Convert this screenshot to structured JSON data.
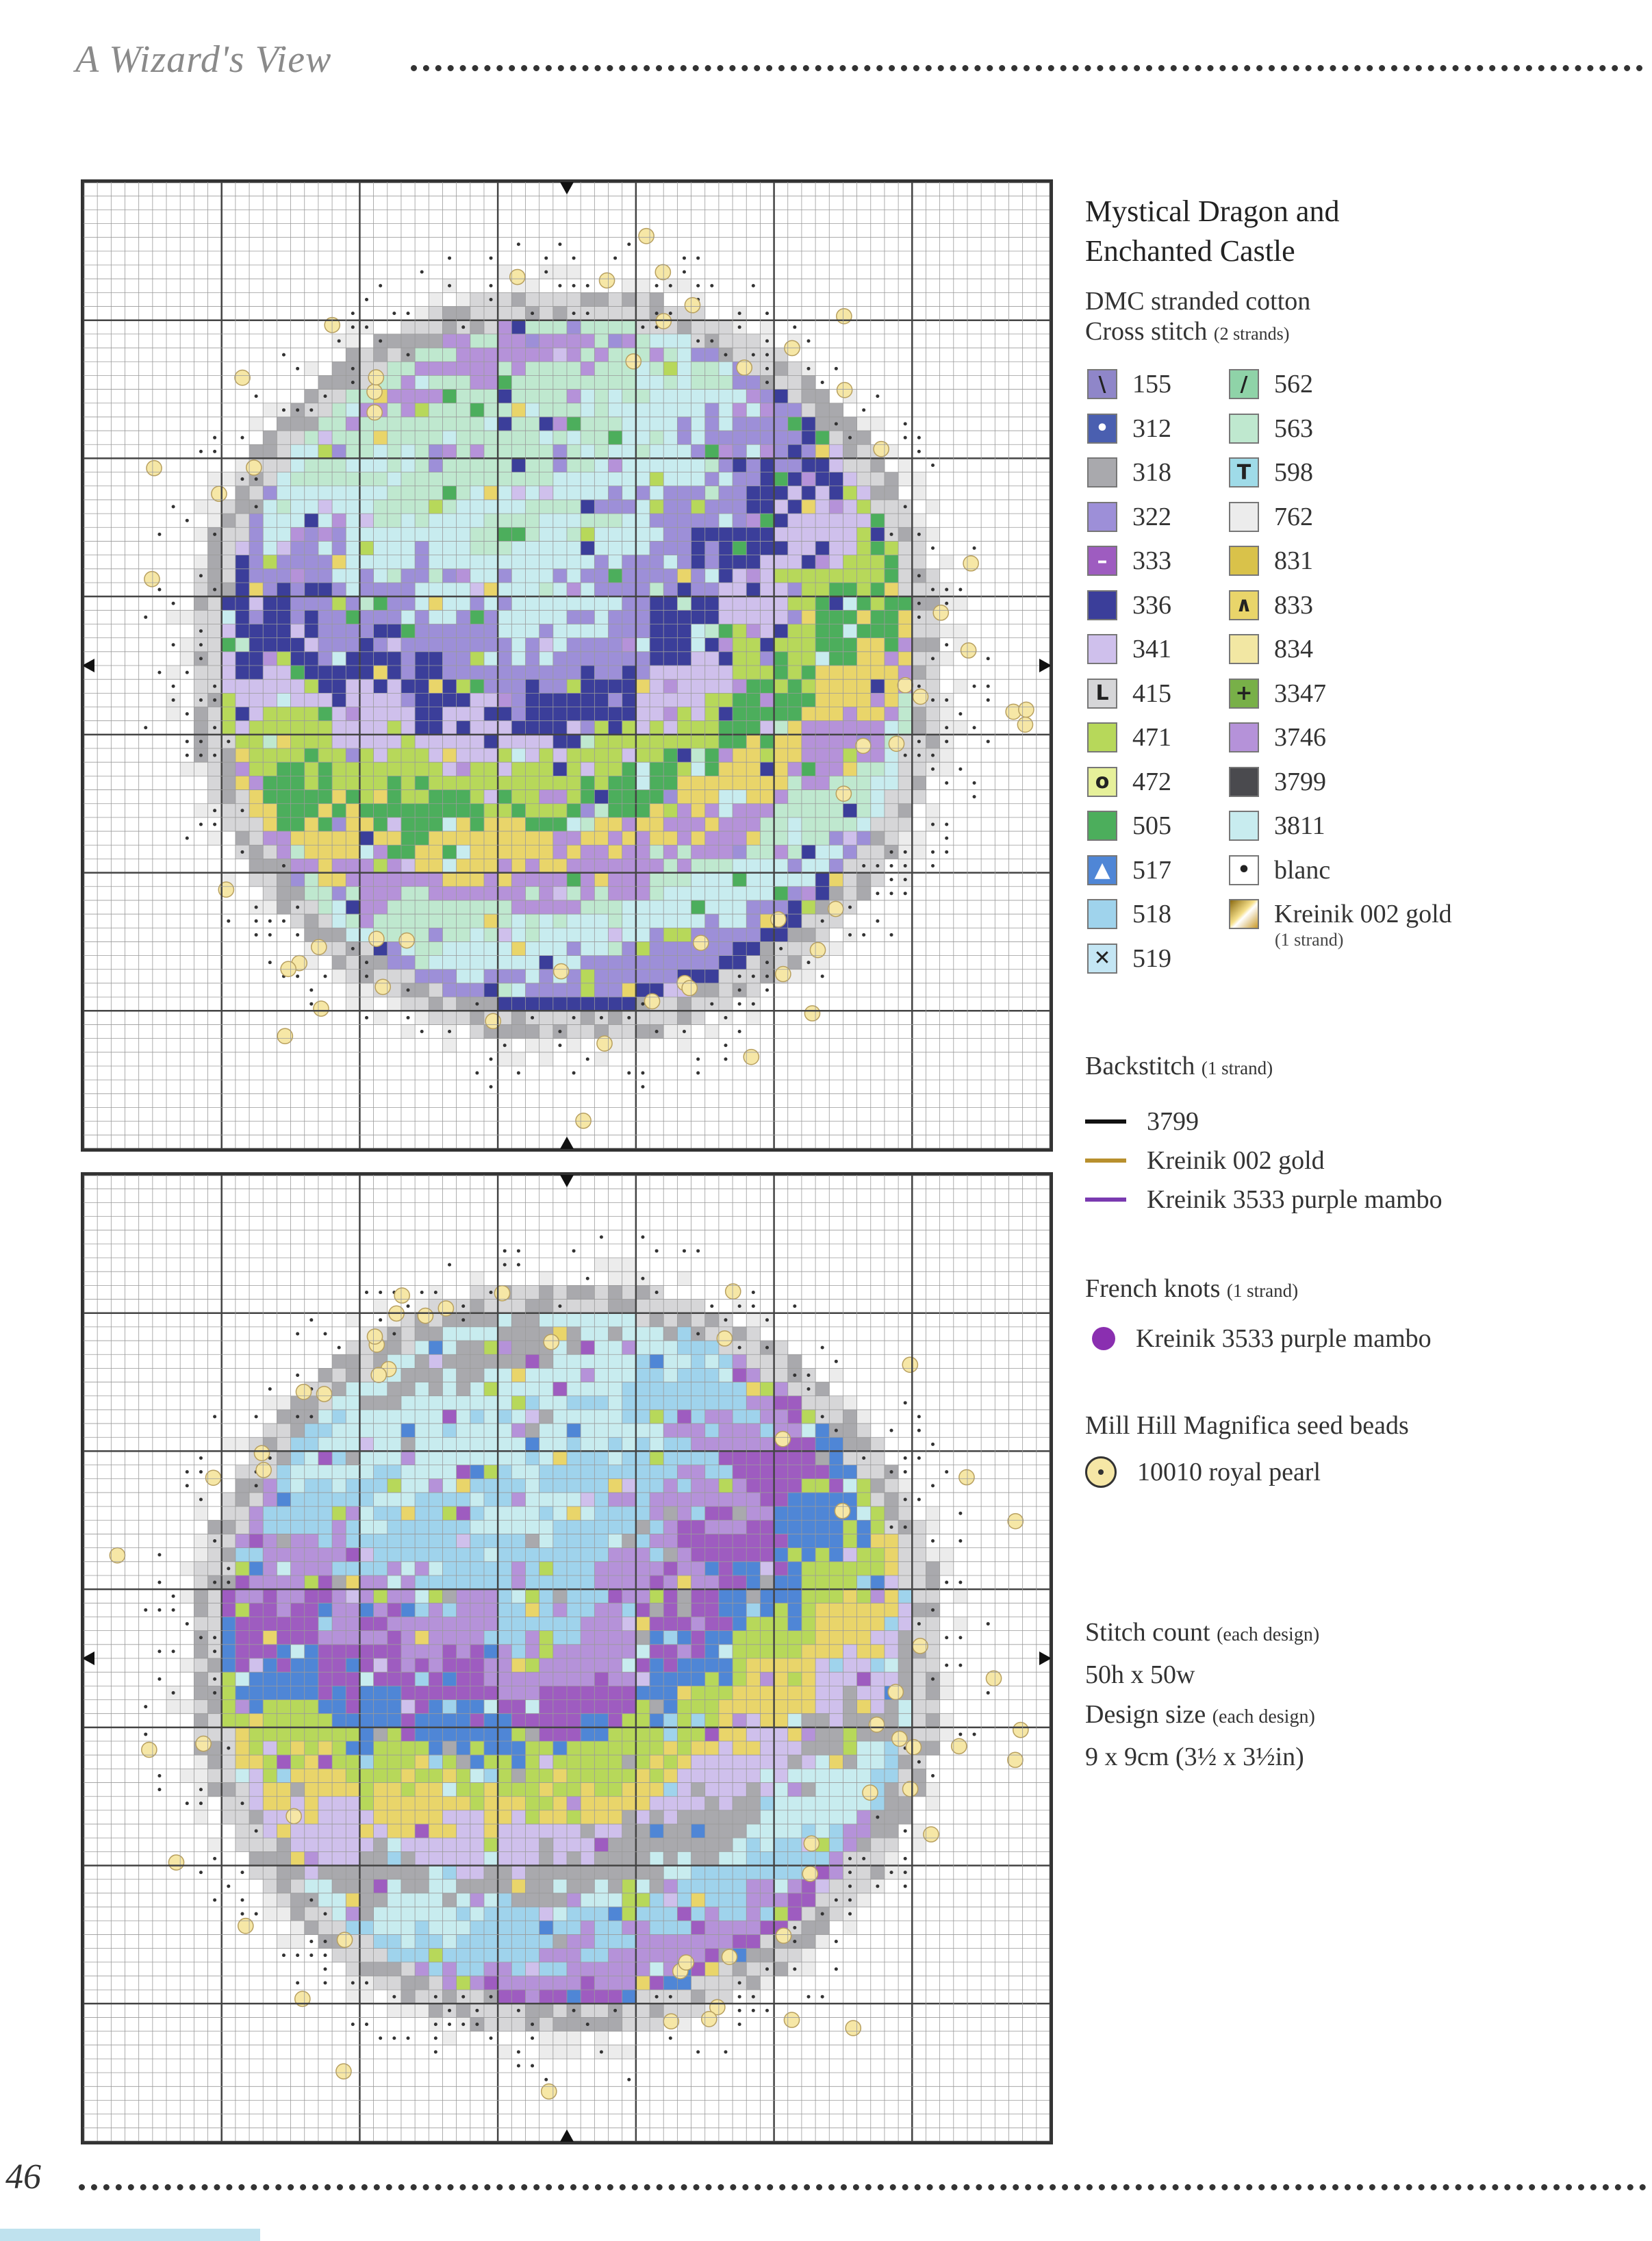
{
  "header": {
    "title": "A Wizard's View"
  },
  "page": {
    "number": "46"
  },
  "legend": {
    "title_line1": "Mystical Dragon and",
    "title_line2": "Enchanted Castle",
    "thread": "DMC stranded cotton",
    "cross_stitch": "Cross stitch",
    "cross_stitch_note": "(2 strands)",
    "left_column": [
      {
        "code": "155",
        "color": "#8f86c9",
        "symbol": "\\",
        "symbol_color": "#222"
      },
      {
        "code": "312",
        "color": "#4a5fb0",
        "symbol": "•",
        "symbol_color": "#fff"
      },
      {
        "code": "318",
        "color": "#a9a9ad",
        "symbol": "",
        "symbol_color": "#222"
      },
      {
        "code": "322",
        "color": "#9d8fd8",
        "symbol": "",
        "symbol_color": "#222"
      },
      {
        "code": "333",
        "color": "#9e5cc0",
        "symbol": "–",
        "symbol_color": "#fff"
      },
      {
        "code": "336",
        "color": "#3b3e9a",
        "symbol": "",
        "symbol_color": "#222"
      },
      {
        "code": "341",
        "color": "#cfc0ec",
        "symbol": "",
        "symbol_color": "#222"
      },
      {
        "code": "415",
        "color": "#d6d6d8",
        "symbol": "L",
        "symbol_color": "#222"
      },
      {
        "code": "471",
        "color": "#b7d85a",
        "symbol": "",
        "symbol_color": "#222"
      },
      {
        "code": "472",
        "color": "#e6f09a",
        "symbol": "o",
        "symbol_color": "#222"
      },
      {
        "code": "505",
        "color": "#4cae5c",
        "symbol": "",
        "symbol_color": "#222"
      },
      {
        "code": "517",
        "color": "#4f86d6",
        "symbol": "▲",
        "symbol_color": "#fff"
      },
      {
        "code": "518",
        "color": "#9fd3ec",
        "symbol": "",
        "symbol_color": "#222"
      },
      {
        "code": "519",
        "color": "#c4e6f4",
        "symbol": "✕",
        "symbol_color": "#222"
      }
    ],
    "right_column": [
      {
        "code": "562",
        "color": "#8fd3a8",
        "symbol": "/",
        "symbol_color": "#222"
      },
      {
        "code": "563",
        "color": "#bfe8cf",
        "symbol": "",
        "symbol_color": "#222"
      },
      {
        "code": "598",
        "color": "#9fdbe8",
        "symbol": "T",
        "symbol_color": "#222"
      },
      {
        "code": "762",
        "color": "#ececec",
        "symbol": "",
        "symbol_color": "#222"
      },
      {
        "code": "831",
        "color": "#d9c24a",
        "symbol": "",
        "symbol_color": "#222"
      },
      {
        "code": "833",
        "color": "#e9d56a",
        "symbol": "∧",
        "symbol_color": "#222"
      },
      {
        "code": "834",
        "color": "#f2e7a3",
        "symbol": "",
        "symbol_color": "#222"
      },
      {
        "code": "3347",
        "color": "#78b048",
        "symbol": "+",
        "symbol_color": "#222"
      },
      {
        "code": "3746",
        "color": "#b592d9",
        "symbol": "",
        "symbol_color": "#222"
      },
      {
        "code": "3799",
        "color": "#4a4a4e",
        "symbol": "",
        "symbol_color": "#222"
      },
      {
        "code": "3811",
        "color": "#c8ecef",
        "symbol": "",
        "symbol_color": "#222"
      },
      {
        "code": "blanc",
        "color": "#ffffff",
        "symbol": "•",
        "symbol_color": "#222"
      },
      {
        "code": "Kreinik 002 gold",
        "color": "#d8b23a",
        "symbol": "",
        "symbol_color": "#222"
      }
    ],
    "gold_note": "(1 strand)"
  },
  "backstitch": {
    "heading": "Backstitch",
    "note": "(1 strand)",
    "items": [
      {
        "label": "3799",
        "color": "#111111"
      },
      {
        "label": "Kreinik 002 gold",
        "color": "#b8902e"
      },
      {
        "label": "Kreinik 3533 purple mambo",
        "color": "#7a3ab0"
      }
    ]
  },
  "french_knots": {
    "heading": "French knots",
    "note": "(1 strand)",
    "label": "Kreinik 3533 purple mambo",
    "color": "#8a2fb0"
  },
  "beads": {
    "heading": "Mill Hill Magnifica seed beads",
    "label": "10010 royal pearl",
    "color": "#f6e7a6"
  },
  "stats": {
    "count_label": "Stitch count",
    "count_note": "(each design)",
    "count_value": "50h x 50w",
    "size_label": "Design size",
    "size_note": "(each design)",
    "size_value": "9 x 9cm (3½ x 3½in)"
  },
  "charts": [
    {
      "name": "dragon-chart",
      "palette": [
        "#bfe8cf",
        "#c8ecef",
        "#9d8fd8",
        "#3b3e9a",
        "#cfc0ec",
        "#b7d85a",
        "#4cae5c",
        "#e9d56a",
        "#b592d9"
      ]
    },
    {
      "name": "castle-chart",
      "palette": [
        "#c8ecef",
        "#9fd3ec",
        "#b592d9",
        "#9e5cc0",
        "#4f86d6",
        "#b7d85a",
        "#e9d56a",
        "#cfc0ec",
        "#a9a9ad"
      ]
    }
  ]
}
